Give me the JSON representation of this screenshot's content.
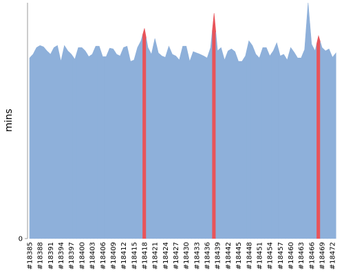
{
  "chart_data": {
    "type": "area",
    "y_label": "mins",
    "categories": [
      "#18385",
      null,
      null,
      "#18388",
      null,
      null,
      "#18391",
      null,
      null,
      "#18394",
      null,
      null,
      "#18397",
      null,
      null,
      "#18400",
      null,
      null,
      "#18403",
      null,
      null,
      "#18406",
      null,
      null,
      "#18409",
      null,
      null,
      "#18412",
      null,
      null,
      "#18415",
      null,
      null,
      "#18418",
      null,
      null,
      "#18421",
      null,
      null,
      "#18424",
      null,
      null,
      "#18427",
      null,
      null,
      "#18430",
      null,
      null,
      "#18433",
      null,
      null,
      "#18436",
      null,
      null,
      "#18439",
      null,
      null,
      "#18442",
      null,
      null,
      "#18445",
      null,
      null,
      "#18448",
      null,
      null,
      "#18451",
      null,
      null,
      "#18454",
      null,
      null,
      "#18457",
      null,
      null,
      "#18460",
      null,
      null,
      "#18463",
      null,
      null,
      "#18466",
      null,
      null,
      "#18469",
      null,
      null,
      "#18472",
      null
    ],
    "values": [
      53.6,
      54.7,
      56.7,
      57.3,
      56.9,
      55.7,
      54.7,
      56.7,
      57.3,
      52.6,
      57.3,
      55.7,
      54.7,
      53.2,
      56.7,
      56.7,
      55.7,
      54.0,
      54.7,
      57.1,
      57.1,
      54.0,
      54.0,
      56.5,
      56.3,
      54.7,
      54.2,
      56.7,
      57.1,
      52.6,
      53.0,
      56.7,
      58.7,
      62.4,
      56.7,
      54.7,
      59.4,
      55.1,
      54.2,
      53.8,
      57.1,
      54.7,
      54.2,
      53.0,
      57.1,
      57.1,
      52.6,
      55.5,
      55.1,
      54.7,
      54.2,
      53.6,
      56.7,
      66.9,
      55.7,
      56.7,
      53.0,
      55.7,
      56.3,
      55.5,
      52.6,
      52.6,
      54.2,
      58.7,
      57.3,
      54.7,
      53.6,
      56.7,
      56.7,
      54.2,
      55.7,
      58.1,
      54.2,
      54.7,
      53.0,
      56.7,
      55.3,
      53.6,
      53.6,
      56.1,
      70,
      57.7,
      55.7,
      60.2,
      56.7,
      55.7,
      56.3,
      53.8,
      55.1
    ],
    "color": "#8eb0da",
    "point_colors": [
      "#8eb0da",
      "#8eb0da",
      "#8eb0da",
      "#8eb0da",
      "#8eb0da",
      "#8eb0da",
      "#8eb0da",
      "#8eb0da",
      "#8eb0da",
      "#8eb0da",
      "#8eb0da",
      "#8eb0da",
      "#8eb0da",
      "#8eb0da",
      "#8eb0da",
      "#8eb0da",
      "#8eb0da",
      "#8eb0da",
      "#8eb0da",
      "#8eb0da",
      "#8eb0da",
      "#8eb0da",
      "#8eb0da",
      "#8eb0da",
      "#8eb0da",
      "#8eb0da",
      "#8eb0da",
      "#8eb0da",
      "#8eb0da",
      "#8eb0da",
      "#8eb0da",
      "#8eb0da",
      "#8eb0da",
      "#e8545a",
      "#8eb0da",
      "#8eb0da",
      "#8eb0da",
      "#8eb0da",
      "#8eb0da",
      "#8eb0da",
      "#8eb0da",
      "#8eb0da",
      "#8eb0da",
      "#8eb0da",
      "#8eb0da",
      "#8eb0da",
      "#8eb0da",
      "#8eb0da",
      "#8eb0da",
      "#8eb0da",
      "#8eb0da",
      "#8eb0da",
      "#8eb0da",
      "#e8545a",
      "#8eb0da",
      "#8eb0da",
      "#8eb0da",
      "#8eb0da",
      "#8eb0da",
      "#8eb0da",
      "#8eb0da",
      "#8eb0da",
      "#8eb0da",
      "#8eb0da",
      "#8eb0da",
      "#8eb0da",
      "#8eb0da",
      "#8eb0da",
      "#8eb0da",
      "#8eb0da",
      "#8eb0da",
      "#8eb0da",
      "#8eb0da",
      "#8eb0da",
      "#8eb0da",
      "#8eb0da",
      "#8eb0da",
      "#8eb0da",
      "#8eb0da",
      "#8eb0da",
      "#8eb0da",
      "#8eb0da",
      "#8eb0da",
      "#e8545a",
      "#8eb0da",
      "#8eb0da",
      "#8eb0da",
      "#8eb0da",
      "#8eb0da"
    ],
    "ylim": [
      0,
      70
    ],
    "yticks": [
      0
    ]
  }
}
